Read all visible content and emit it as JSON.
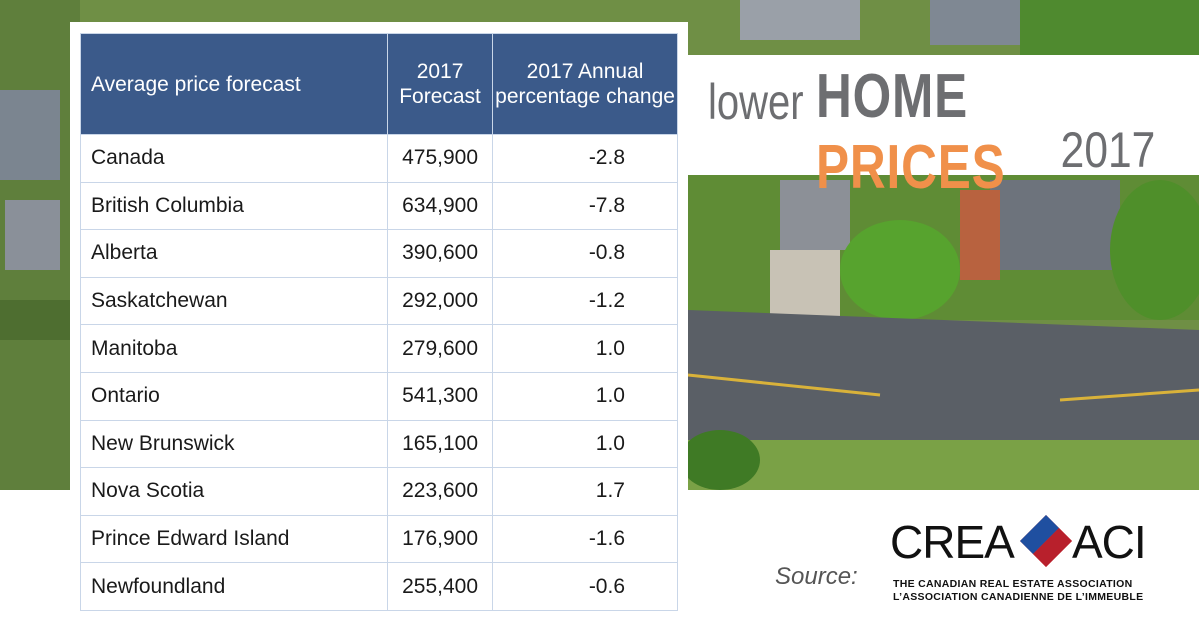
{
  "table": {
    "header": [
      "Average price forecast",
      "2017 Forecast",
      "2017 Annual percentage change"
    ],
    "rows": [
      [
        "Canada",
        "475,900",
        "-2.8"
      ],
      [
        "British Columbia",
        "634,900",
        "-7.8"
      ],
      [
        "Alberta",
        "390,600",
        "-0.8"
      ],
      [
        "Saskatchewan",
        "292,000",
        "-1.2"
      ],
      [
        "Manitoba",
        "279,600",
        "1.0"
      ],
      [
        "Ontario",
        "541,300",
        "1.0"
      ],
      [
        "New Brunswick",
        "165,100",
        "1.0"
      ],
      [
        "Nova Scotia",
        "223,600",
        "1.7"
      ],
      [
        "Prince Edward Island",
        "176,900",
        "-1.6"
      ],
      [
        "Newfoundland",
        "255,400",
        "-0.6"
      ]
    ]
  },
  "headline": {
    "lower": "lower",
    "home": "HOME",
    "prices": "PRICES",
    "year": "2017"
  },
  "source": {
    "label": "Source:",
    "crea": "CREA",
    "aci": "ACI",
    "line1": "THE CANADIAN REAL ESTATE ASSOCIATION",
    "line2": "L’ASSOCIATION CANADIENNE DE L’IMMEUBLE"
  }
}
